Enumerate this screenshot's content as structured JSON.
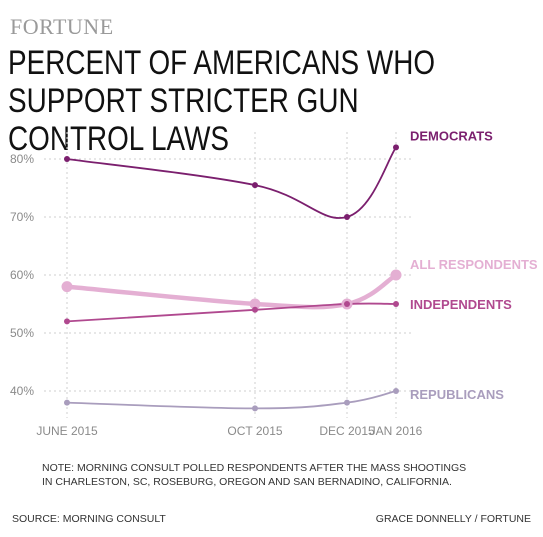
{
  "brand": "FORTUNE",
  "title": "PERCENT OF AMERICANS WHO SUPPORT STRICTER GUN CONTROL LAWS",
  "note_lines": [
    "NOTE: MORNING CONSULT POLLED RESPONDENTS AFTER THE MASS SHOOTINGS",
    "IN CHARLESTON, SC, ROSEBURG, OREGON AND SAN BERNADINO, CALIFORNIA."
  ],
  "source": "SOURCE: MORNING CONSULT",
  "credit": "GRACE DONNELLY / FORTUNE",
  "chart_data": {
    "type": "line",
    "x": [
      "JUNE 2015",
      "OCT 2015",
      "DEC 2015",
      "JAN 2016"
    ],
    "x_dates": [
      "2015-06-01",
      "2015-10-01",
      "2015-12-01",
      "2016-01-01"
    ],
    "yticks": [
      "40%",
      "50%",
      "60%",
      "70%",
      "80%"
    ],
    "ylim": [
      36,
      85
    ],
    "grid": true,
    "series": [
      {
        "name": "DEMOCRATS",
        "values": [
          80,
          75.5,
          70,
          82
        ],
        "color": "#7b1f6e",
        "width": 1.8,
        "radius": 3
      },
      {
        "name": "ALL RESPONDENTS",
        "values": [
          58,
          55,
          55,
          60
        ],
        "color": "#e4afd3",
        "width": 4.5,
        "radius": 5.5
      },
      {
        "name": "INDEPENDENTS",
        "values": [
          52,
          54,
          55,
          55
        ],
        "color": "#b0498f",
        "width": 1.8,
        "radius": 3
      },
      {
        "name": "REPUBLICANS",
        "values": [
          38,
          37,
          38,
          40
        ],
        "color": "#a99dbd",
        "width": 1.8,
        "radius": 3
      }
    ]
  }
}
